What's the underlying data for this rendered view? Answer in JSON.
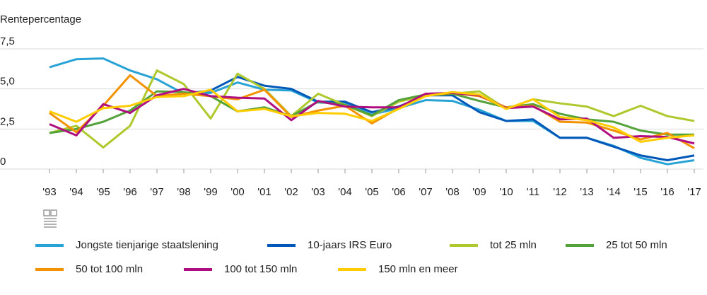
{
  "chart_data": {
    "type": "line",
    "y_label": "Rentepercentage",
    "categories": [
      "'93",
      "'94",
      "'95",
      "'96",
      "'97",
      "'98",
      "'99",
      "'00",
      "'01",
      "'02",
      "'03",
      "'04",
      "'05",
      "'06",
      "'07",
      "'08",
      "'09",
      "'10",
      "'11",
      "'12",
      "'13",
      "'14",
      "'15",
      "'16",
      "'17"
    ],
    "ylim": [
      0,
      7.5
    ],
    "yticks": [
      0,
      {
        "value": 2.5,
        "label": "2,5"
      },
      {
        "value": 5,
        "label": "5,0"
      },
      {
        "value": 7.5,
        "label": "7,5"
      }
    ],
    "grid": true,
    "legend": "bottom",
    "series": [
      {
        "name": "Jongste tienjarige staatslening",
        "color": "#29a3d6",
        "values": [
          6.35,
          6.85,
          6.9,
          6.15,
          5.6,
          4.7,
          4.75,
          5.4,
          4.95,
          4.9,
          4.15,
          4.1,
          3.4,
          3.8,
          4.3,
          4.25,
          3.7,
          3.0,
          3.0,
          1.95,
          1.95,
          1.45,
          0.7,
          0.3,
          0.55
        ]
      },
      {
        "name": "10-jaars IRS Euro",
        "color": "#0058b8",
        "values": [
          null,
          null,
          null,
          null,
          null,
          4.7,
          4.9,
          5.75,
          5.2,
          5.0,
          4.2,
          4.2,
          3.55,
          3.9,
          4.6,
          4.6,
          3.55,
          3.0,
          3.1,
          1.95,
          1.95,
          1.4,
          0.85,
          0.55,
          0.85
        ]
      },
      {
        "name": "tot 25 mln",
        "color": "#aec92e",
        "values": [
          2.25,
          2.7,
          1.35,
          2.7,
          6.15,
          5.3,
          3.15,
          5.95,
          5.0,
          3.3,
          4.7,
          4.0,
          3.3,
          4.2,
          4.6,
          4.7,
          4.85,
          3.75,
          4.35,
          4.1,
          3.9,
          3.3,
          3.95,
          3.3,
          3.0
        ]
      },
      {
        "name": "25 tot 50 mln",
        "color": "#53a23a",
        "values": [
          2.25,
          2.5,
          2.95,
          3.65,
          4.85,
          4.8,
          4.55,
          3.6,
          3.85,
          3.3,
          4.2,
          4.0,
          3.35,
          4.3,
          4.65,
          4.7,
          4.25,
          3.85,
          4.05,
          3.45,
          3.1,
          2.95,
          2.4,
          2.15,
          2.15
        ]
      },
      {
        "name": "50 tot 100 mln",
        "color": "#f39200",
        "values": [
          3.5,
          2.3,
          3.95,
          5.85,
          4.55,
          4.7,
          4.55,
          4.35,
          4.95,
          3.25,
          3.65,
          3.95,
          2.85,
          3.8,
          4.6,
          4.75,
          4.55,
          3.85,
          3.95,
          2.95,
          2.9,
          2.4,
          1.85,
          2.25,
          1.3
        ]
      },
      {
        "name": "100 tot 150 mln",
        "color": "#af0e80",
        "values": [
          2.8,
          2.1,
          4.05,
          3.5,
          4.6,
          5.0,
          4.55,
          4.45,
          4.4,
          3.05,
          4.25,
          3.9,
          3.85,
          3.85,
          4.7,
          4.75,
          4.6,
          3.8,
          3.9,
          3.1,
          3.15,
          1.95,
          2.05,
          2.0,
          1.6
        ]
      },
      {
        "name": "150 mln en meer",
        "color": "#ffcc00",
        "values": [
          3.6,
          2.95,
          3.8,
          3.95,
          4.5,
          4.55,
          4.95,
          3.6,
          3.75,
          3.3,
          3.5,
          3.45,
          3.0,
          3.75,
          4.55,
          4.8,
          4.65,
          3.75,
          4.35,
          3.25,
          3.05,
          2.6,
          1.7,
          1.95,
          2.1
        ]
      }
    ]
  }
}
